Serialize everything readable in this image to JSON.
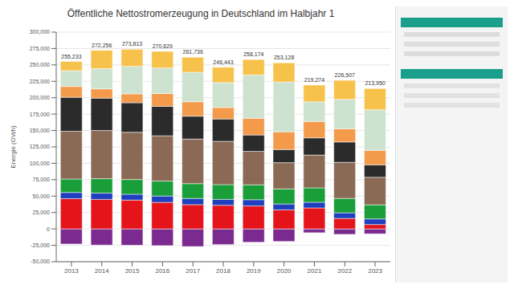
{
  "chart_data": {
    "type": "bar",
    "title": "Öffentliche Nettostromerzeugung in Deutschland im Halbjahr 1",
    "y_label": "Energie (GWh)",
    "stacked": true,
    "grid": true,
    "categories": [
      "2013",
      "2014",
      "2015",
      "2016",
      "2017",
      "2018",
      "2019",
      "2020",
      "2021",
      "2022",
      "2023"
    ],
    "ylim": [
      -50000,
      300000
    ],
    "yticks": [
      {
        "value": -50000,
        "label": "-50,000"
      },
      {
        "value": -25000,
        "label": "-25,000"
      },
      0,
      {
        "value": 25000,
        "label": "25,000"
      },
      {
        "value": 50000,
        "label": "50,000"
      },
      {
        "value": 75000,
        "label": "75,000"
      },
      {
        "value": 100000,
        "label": "100,000"
      },
      {
        "value": 125000,
        "label": "125,000"
      },
      {
        "value": 150000,
        "label": "150,000"
      },
      {
        "value": 175000,
        "label": "175,000"
      },
      {
        "value": 200000,
        "label": "200,000"
      },
      {
        "value": 225000,
        "label": "225,000"
      },
      {
        "value": 250000,
        "label": "250,000"
      },
      {
        "value": 275000,
        "label": "275,000"
      },
      {
        "value": 300000,
        "label": "300,000"
      }
    ],
    "series": [
      {
        "color": "#7b2b8f",
        "values": [
          -23051,
          -24621,
          -24882,
          -25475,
          -26856,
          -23878,
          -20316,
          -19118,
          -5836,
          -8300,
          -7500
        ]
      },
      {
        "color": "#e5141b",
        "values": [
          46100,
          45000,
          44000,
          40500,
          37000,
          36000,
          35000,
          29000,
          32000,
          16000,
          6700
        ]
      },
      {
        "color": "#1f3fbf",
        "values": [
          9485,
          9574,
          8806,
          9628,
          9422,
          9085,
          9499,
          9000,
          8600,
          8537,
          8500
        ]
      },
      {
        "color": "#1a9e3a",
        "values": [
          20500,
          22000,
          22500,
          22800,
          22600,
          22500,
          22700,
          23000,
          22000,
          22000,
          21500
        ]
      },
      {
        "color": "#8b6a55",
        "values": [
          72800,
          73400,
          72000,
          69000,
          68000,
          66000,
          51000,
          40000,
          50000,
          55000,
          42000
        ]
      },
      {
        "color": "#2b2b2b",
        "values": [
          51811,
          49418,
          45010,
          44910,
          34800,
          34000,
          25000,
          20000,
          26200,
          31000,
          19000
        ]
      },
      {
        "color": "#f39a4b",
        "values": [
          16500,
          14000,
          13500,
          19500,
          22000,
          17500,
          25500,
          27000,
          25000,
          20000,
          22000
        ]
      },
      {
        "color": "#cde2cf",
        "values": [
          24000,
          31000,
          42000,
          39000,
          45000,
          38000,
          66000,
          76000,
          30000,
          45000,
          62000
        ]
      },
      {
        "color": "#f7c24b",
        "values": [
          14037,
          27864,
          25997,
          25291,
          22914,
          23358,
          23475,
          29128,
          25474,
          28970,
          32250
        ]
      }
    ],
    "totals": [
      {
        "value": 255233,
        "label": "255,233"
      },
      {
        "value": 272256,
        "label": "272,256"
      },
      {
        "value": 273813,
        "label": "273,813"
      },
      {
        "value": 270629,
        "label": "270,629"
      },
      {
        "value": 261736,
        "label": "261,736"
      },
      {
        "value": 246443,
        "label": "246,443"
      },
      {
        "value": 258174,
        "label": "258,174"
      },
      {
        "value": 253128,
        "label": "253,128"
      },
      {
        "value": 219274,
        "label": "219,274"
      },
      {
        "value": 226507,
        "label": "226,507"
      },
      {
        "value": 213950,
        "label": "213,950"
      }
    ]
  }
}
